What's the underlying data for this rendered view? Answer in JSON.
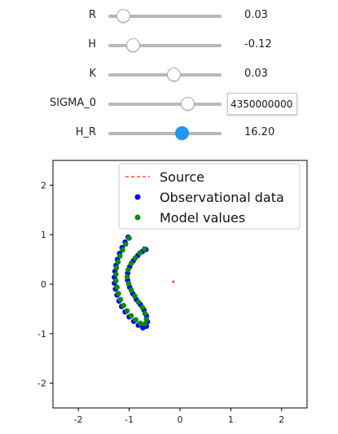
{
  "sliders": [
    {
      "label": "R",
      "value_text": "0.03",
      "fraction": 0.13,
      "style": "plain"
    },
    {
      "label": "H",
      "value_text": "-0.12",
      "fraction": 0.22,
      "style": "plain"
    },
    {
      "label": "K",
      "value_text": "0.03",
      "fraction": 0.58,
      "style": "plain"
    },
    {
      "label": "SIGMA_0",
      "value_text": "4350000000.",
      "fraction": 0.7,
      "style": "input"
    },
    {
      "label": "H_R",
      "value_text": "16.20",
      "fraction": 0.65,
      "style": "active"
    }
  ],
  "chart_data": {
    "type": "scatter",
    "xlim": [
      -2.5,
      2.5
    ],
    "ylim": [
      -2.5,
      2.5
    ],
    "xticks": [
      -2,
      -1,
      0,
      1,
      2
    ],
    "yticks": [
      -2,
      -1,
      0,
      1,
      2
    ],
    "grid": false,
    "legend_position": "top-right",
    "series": [
      {
        "name": "Source",
        "style": "dashed-line",
        "color": "#ff4d4d",
        "points": [
          [
            -0.13,
            0.05
          ]
        ]
      },
      {
        "name": "Observational data",
        "style": "marker",
        "color": "#0000ff",
        "points": [
          [
            -1.02,
            0.95
          ],
          [
            -1.08,
            0.85
          ],
          [
            -1.14,
            0.74
          ],
          [
            -1.19,
            0.62
          ],
          [
            -1.23,
            0.5
          ],
          [
            -1.26,
            0.38
          ],
          [
            -1.28,
            0.26
          ],
          [
            -1.29,
            0.14
          ],
          [
            -1.29,
            0.02
          ],
          [
            -1.27,
            -0.1
          ],
          [
            -1.24,
            -0.22
          ],
          [
            -1.2,
            -0.34
          ],
          [
            -1.15,
            -0.45
          ],
          [
            -1.08,
            -0.56
          ],
          [
            -1.0,
            -0.66
          ],
          [
            -0.91,
            -0.75
          ],
          [
            -0.82,
            -0.83
          ],
          [
            -0.73,
            -0.88
          ],
          [
            -0.66,
            -0.85
          ],
          [
            -0.64,
            -0.76
          ],
          [
            -0.66,
            -0.64
          ],
          [
            -0.71,
            -0.52
          ],
          [
            -0.78,
            -0.41
          ],
          [
            -0.86,
            -0.31
          ],
          [
            -0.93,
            -0.19
          ],
          [
            -0.99,
            -0.06
          ],
          [
            -1.03,
            0.08
          ],
          [
            -1.03,
            0.22
          ],
          [
            -0.99,
            0.35
          ],
          [
            -0.92,
            0.47
          ],
          [
            -0.83,
            0.58
          ],
          [
            -0.74,
            0.66
          ],
          [
            -0.67,
            0.7
          ]
        ]
      },
      {
        "name": "Model values",
        "style": "marker",
        "color": "#0a8a0a",
        "points": [
          [
            -1.0,
            0.93
          ],
          [
            -1.07,
            0.81
          ],
          [
            -1.13,
            0.69
          ],
          [
            -1.18,
            0.57
          ],
          [
            -1.22,
            0.45
          ],
          [
            -1.25,
            0.33
          ],
          [
            -1.26,
            0.2
          ],
          [
            -1.26,
            0.07
          ],
          [
            -1.24,
            -0.06
          ],
          [
            -1.21,
            -0.19
          ],
          [
            -1.17,
            -0.31
          ],
          [
            -1.11,
            -0.43
          ],
          [
            -1.04,
            -0.54
          ],
          [
            -0.96,
            -0.64
          ],
          [
            -0.87,
            -0.72
          ],
          [
            -0.78,
            -0.79
          ],
          [
            -0.69,
            -0.8
          ],
          [
            -0.66,
            -0.71
          ],
          [
            -0.69,
            -0.59
          ],
          [
            -0.74,
            -0.47
          ],
          [
            -0.82,
            -0.36
          ],
          [
            -0.89,
            -0.24
          ],
          [
            -0.96,
            -0.12
          ],
          [
            -1.01,
            0.01
          ],
          [
            -1.04,
            0.15
          ],
          [
            -1.02,
            0.29
          ],
          [
            -0.96,
            0.42
          ],
          [
            -0.88,
            0.53
          ],
          [
            -0.79,
            0.63
          ],
          [
            -0.7,
            0.71
          ]
        ]
      }
    ]
  }
}
